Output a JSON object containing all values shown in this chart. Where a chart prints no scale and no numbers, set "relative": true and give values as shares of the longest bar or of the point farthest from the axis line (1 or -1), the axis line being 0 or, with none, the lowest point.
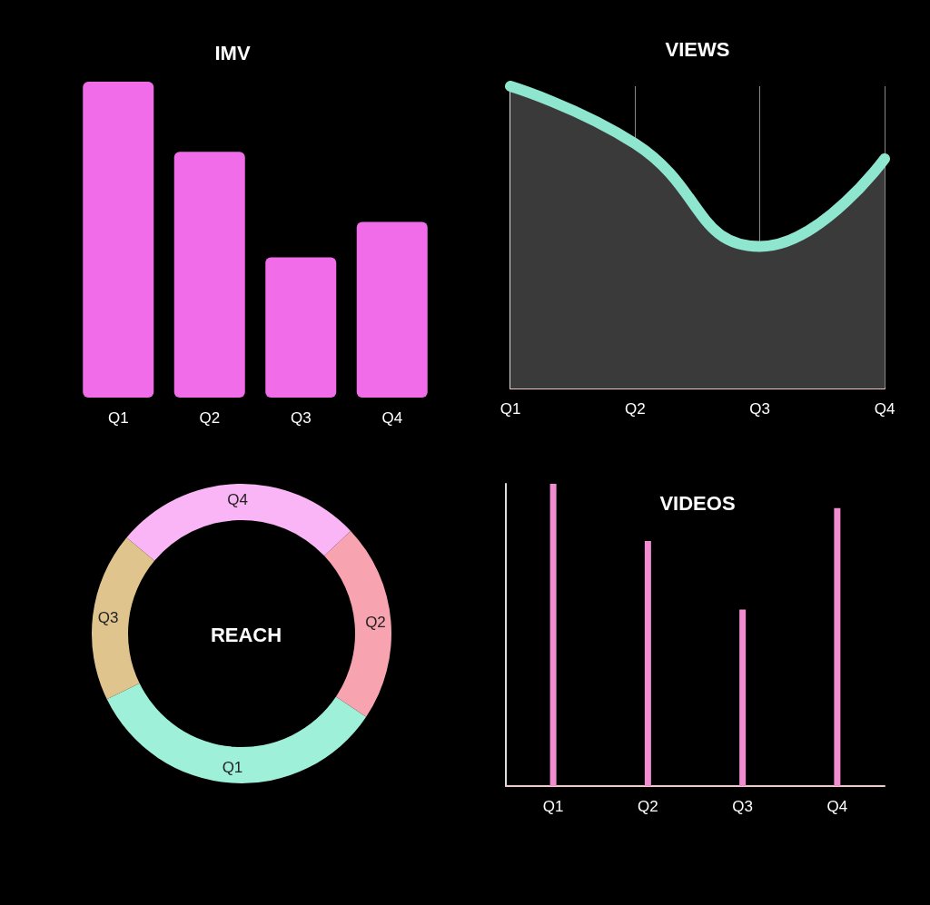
{
  "chart_data": [
    {
      "type": "bar",
      "title": "IMV",
      "categories": [
        "Q1",
        "Q2",
        "Q3",
        "Q4"
      ],
      "values": [
        1,
        0.778,
        0.444,
        0.556
      ],
      "color": "#f06ce9",
      "relative": true
    },
    {
      "type": "area",
      "title": "VIEWS",
      "categories": [
        "Q1",
        "Q2",
        "Q3",
        "Q4"
      ],
      "values": [
        1,
        0.81,
        0.47,
        0.76
      ],
      "color": "#8fe6cf",
      "relative": true,
      "grid": "x"
    },
    {
      "type": "donut",
      "title": "REACH",
      "categories": [
        "Q1",
        "Q2",
        "Q4",
        "Q3"
      ],
      "values": [
        33.4,
        21.4,
        26.9,
        18.3
      ],
      "colors": [
        "#9ff0d8",
        "#f7a3b0",
        "#f9b5f5",
        "#e0c48e"
      ]
    },
    {
      "type": "bar",
      "title": "VIDEOS",
      "categories": [
        "Q1",
        "Q2",
        "Q3",
        "Q4"
      ],
      "values": [
        1,
        0.811,
        0.584,
        0.92
      ],
      "color": "#f08ccf",
      "relative": true
    }
  ]
}
